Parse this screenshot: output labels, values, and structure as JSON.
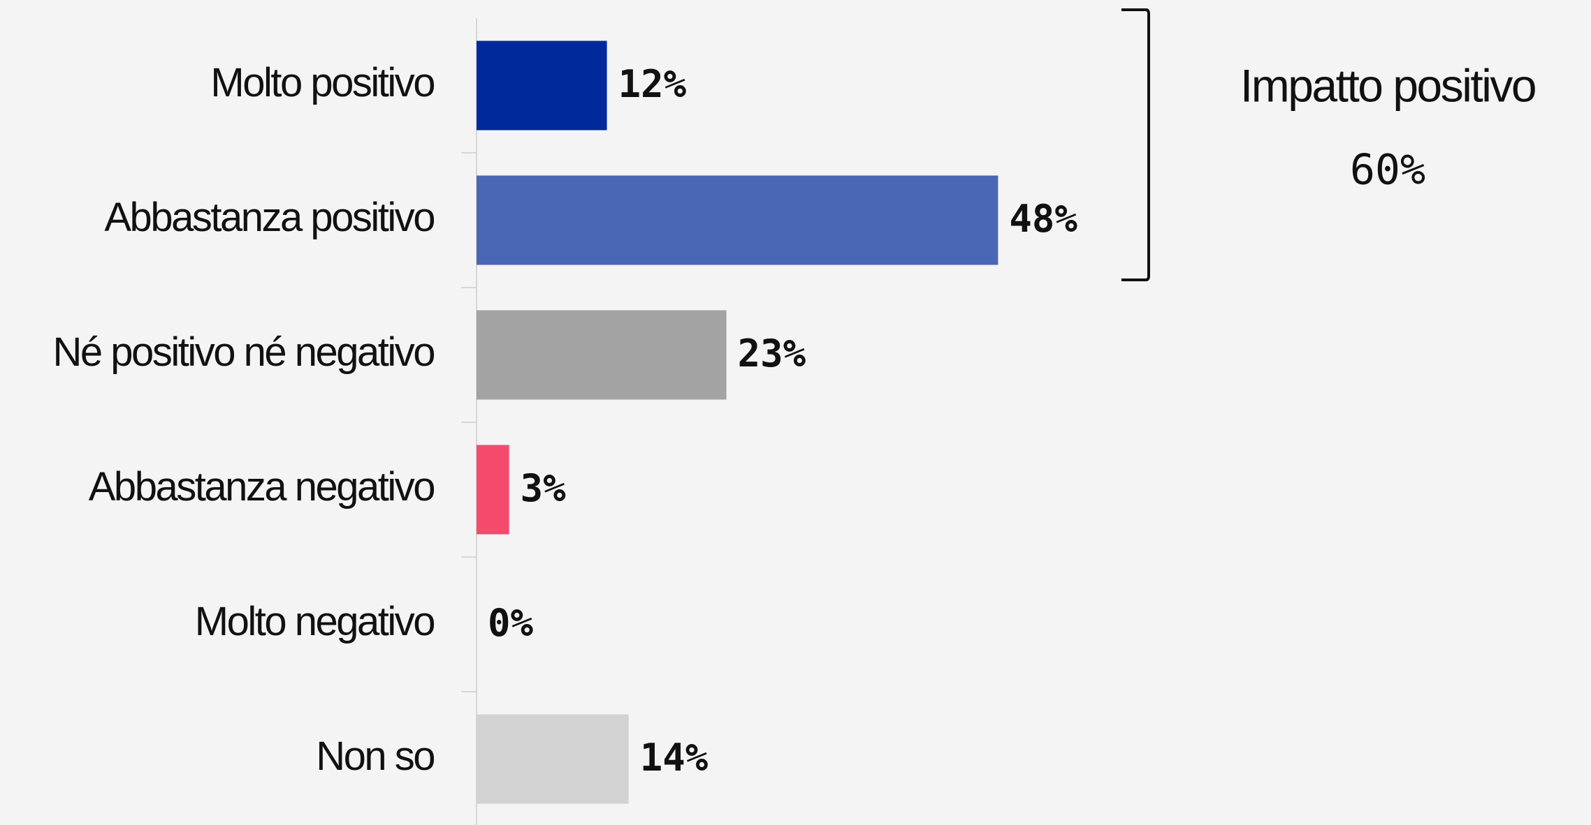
{
  "chart_data": {
    "type": "bar",
    "orientation": "horizontal",
    "categories": [
      "Molto positivo",
      "Abbastanza positivo",
      "Né positivo né negativo",
      "Abbastanza negativo",
      "Molto negativo",
      "Non so"
    ],
    "values": [
      12,
      48,
      23,
      3,
      0,
      14
    ],
    "value_labels": [
      "12%",
      "48%",
      "23%",
      "3%",
      "0%",
      "14%"
    ],
    "colors": [
      "#002a9b",
      "#4a67b6",
      "#a3a3a3",
      "#f44a6c",
      "#8b1e3f",
      "#d3d2d3"
    ],
    "xlim": [
      0,
      100
    ],
    "annotation": {
      "text": "Impatto positivo",
      "value": 60,
      "value_label": "60%"
    }
  }
}
